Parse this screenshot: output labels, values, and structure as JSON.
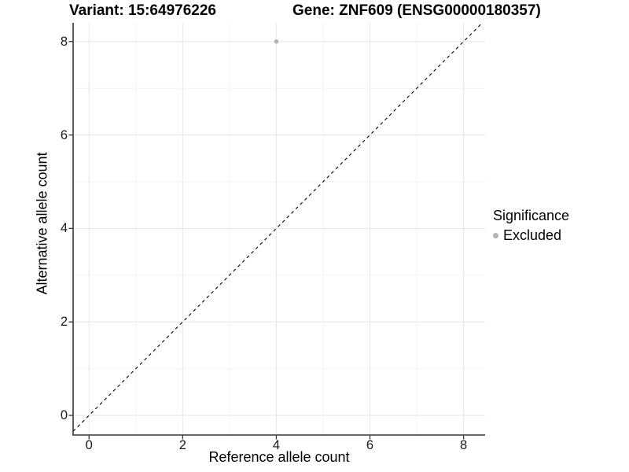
{
  "header": {
    "variant_title": "Variant: 15:64976226",
    "gene_title": "Gene: ZNF609 (ENSG00000180357)"
  },
  "chart_data": {
    "type": "scatter",
    "xlabel": "Reference allele count",
    "ylabel": "Alternative allele count",
    "xlim": [
      -0.34,
      8.46
    ],
    "ylim": [
      -0.42,
      8.4
    ],
    "xticks": [
      0,
      2,
      4,
      6,
      8
    ],
    "yticks": [
      0,
      2,
      4,
      6,
      8
    ],
    "xminor": [
      1,
      3,
      5,
      7
    ],
    "yminor": [
      1,
      3,
      5,
      7
    ],
    "grid": true,
    "series": [
      {
        "name": "Excluded",
        "color": "#b4b4b4",
        "points": [
          {
            "x": 4,
            "y": 8
          }
        ]
      }
    ],
    "reference_line": {
      "kind": "identity",
      "slope": 1,
      "intercept": 0,
      "style": "dashed",
      "color": "#000000"
    },
    "legend": {
      "title": "Significance",
      "position": "right",
      "items": [
        {
          "label": "Excluded",
          "color": "#b4b4b4"
        }
      ]
    },
    "colors": {
      "axis": "#333333",
      "tick_label": "#1a1a1a",
      "grid_major": "#e7e7e7",
      "grid_minor": "#f2f2f2",
      "background": "#ffffff"
    }
  }
}
